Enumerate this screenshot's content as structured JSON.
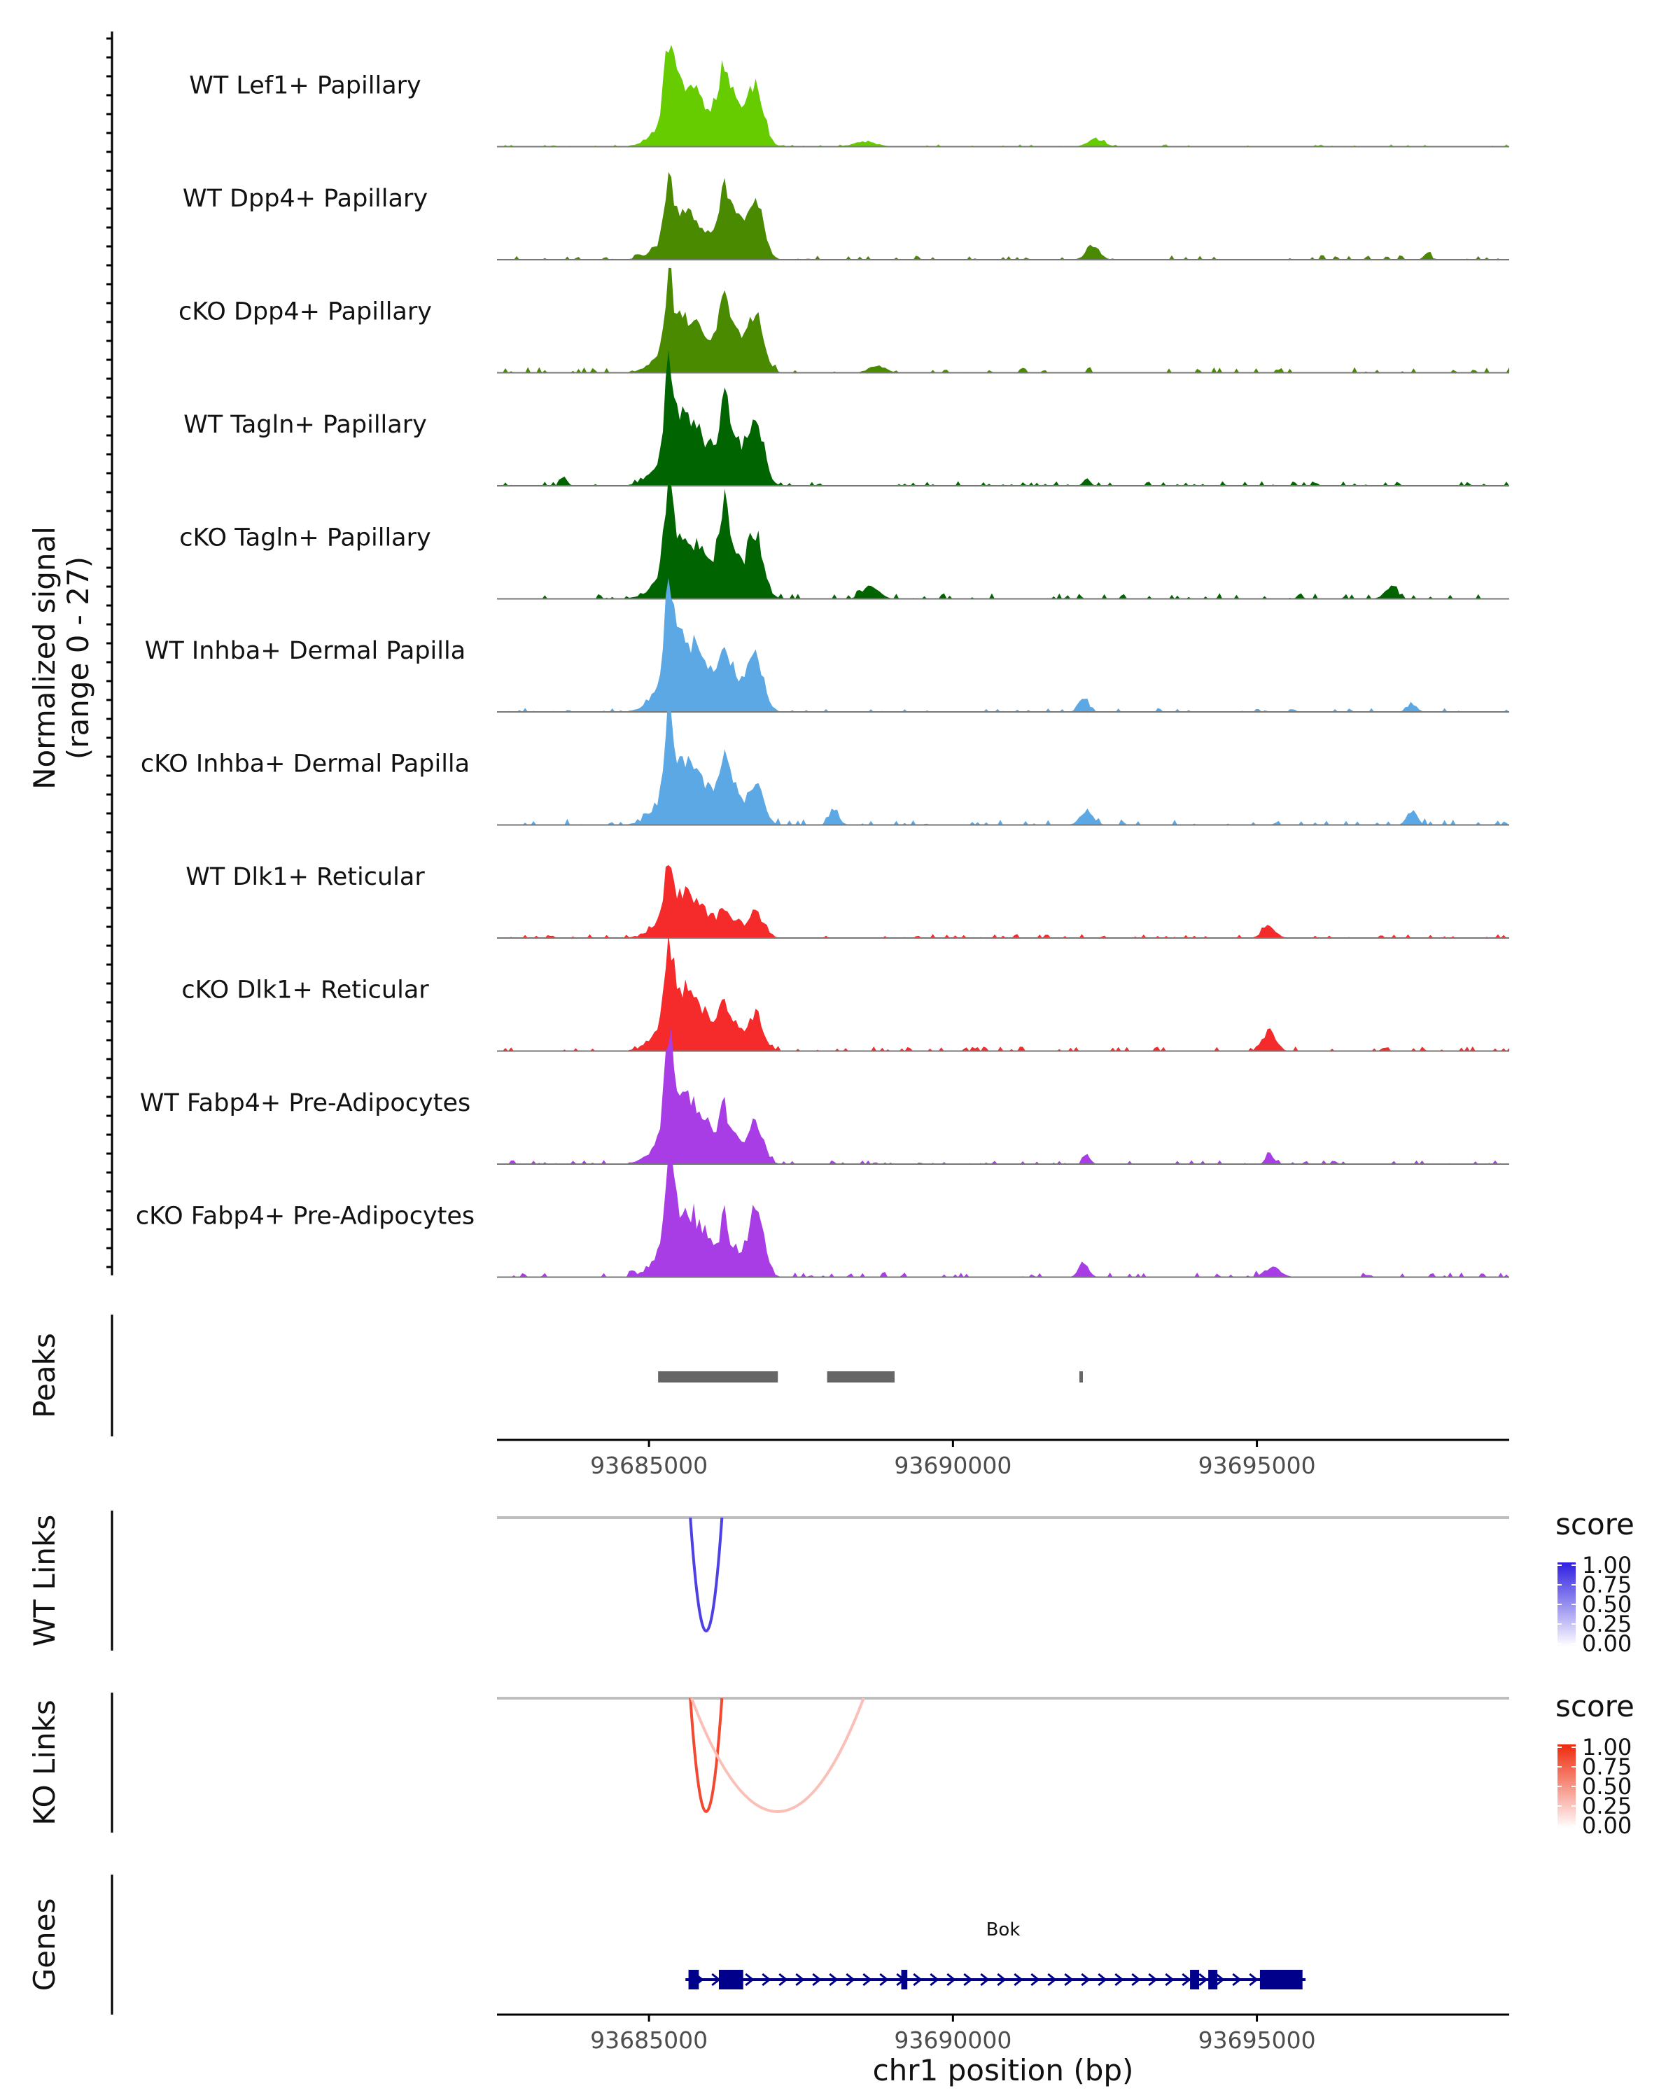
{
  "chart_data": {
    "type": "genome-coverage",
    "region": {
      "chrom": "chr1",
      "start": 93682500,
      "end": 93699150
    },
    "x_ticks": [
      93685000,
      93690000,
      93695000
    ],
    "x_tick_labels": [
      "93685000",
      "93690000",
      "93695000"
    ],
    "xlabel": "chr1 position (bp)",
    "coverage": {
      "ylabel_line1": "Normalized signal",
      "ylabel_line2": "(range 0 - 27)",
      "y_range": [
        0,
        27
      ],
      "peak_positions": {
        "dp1": 93685500,
        "dp2": 93685900,
        "main": 93686700,
        "distal": 93695100
      },
      "tracks": [
        {
          "label": "WT Lef1+ Papillary",
          "color": "#66CC00",
          "peaks": [
            [
              93685000,
              93686200,
              13
            ],
            [
              93685200,
              93685450,
              14
            ],
            [
              93686000,
              93686600,
              13
            ],
            [
              93686500,
              93687000,
              13
            ],
            [
              93686150,
              93686300,
              4
            ],
            [
              93692100,
              93692600,
              1.5
            ],
            [
              93688200,
              93688900,
              1
            ]
          ],
          "noise": 0.4,
          "seed": 11
        },
        {
          "label": "WT Dpp4+ Papillary",
          "color": "#4A8A00",
          "peaks": [
            [
              93685000,
              93686200,
              9
            ],
            [
              93685200,
              93685450,
              10
            ],
            [
              93686000,
              93686600,
              12
            ],
            [
              93686500,
              93687000,
              13
            ],
            [
              93686150,
              93686300,
              4
            ],
            [
              93692100,
              93692500,
              3
            ],
            [
              93697700,
              93697900,
              1.5
            ]
          ],
          "noise": 0.8,
          "seed": 21
        },
        {
          "label": "cKO Dpp4+ Papillary",
          "color": "#4A8A00",
          "peaks": [
            [
              93685000,
              93686200,
              11
            ],
            [
              93685200,
              93685450,
              12
            ],
            [
              93686000,
              93686600,
              13
            ],
            [
              93686500,
              93687000,
              11
            ],
            [
              93686150,
              93686300,
              5
            ],
            [
              93688500,
              93689000,
              1.5
            ]
          ],
          "noise": 1.0,
          "seed": 31
        },
        {
          "label": "WT Tagln+ Papillary",
          "color": "#006400",
          "peaks": [
            [
              93685000,
              93686200,
              14
            ],
            [
              93685200,
              93685450,
              15
            ],
            [
              93686000,
              93686600,
              13
            ],
            [
              93686500,
              93687000,
              14
            ],
            [
              93686150,
              93686300,
              5
            ],
            [
              93683500,
              93683700,
              2
            ],
            [
              93692100,
              93692300,
              1.5
            ]
          ],
          "noise": 0.8,
          "seed": 41
        },
        {
          "label": "cKO Tagln+ Papillary",
          "color": "#006400",
          "peaks": [
            [
              93685000,
              93686200,
              13
            ],
            [
              93685200,
              93685450,
              16
            ],
            [
              93686000,
              93686600,
              14
            ],
            [
              93686500,
              93687000,
              13
            ],
            [
              93686150,
              93686300,
              6
            ],
            [
              93688400,
              93688900,
              2.5
            ],
            [
              93697000,
              93697400,
              2
            ]
          ],
          "noise": 1.0,
          "seed": 51
        },
        {
          "label": "WT Inhba+ Dermal Papilla",
          "color": "#5BA8E5",
          "peaks": [
            [
              93685000,
              93686200,
              15
            ],
            [
              93685200,
              93685450,
              16
            ],
            [
              93686000,
              93686600,
              10
            ],
            [
              93686500,
              93687000,
              11
            ],
            [
              93686150,
              93686300,
              4
            ],
            [
              93692000,
              93692300,
              2.5
            ],
            [
              93697400,
              93697700,
              1.5
            ]
          ],
          "noise": 0.7,
          "seed": 61
        },
        {
          "label": "cKO Inhba+ Dermal Papilla",
          "color": "#5BA8E5",
          "peaks": [
            [
              93685000,
              93686200,
              13
            ],
            [
              93685200,
              93685450,
              18
            ],
            [
              93686000,
              93686600,
              9
            ],
            [
              93686500,
              93687000,
              8
            ],
            [
              93686150,
              93686300,
              5
            ],
            [
              93687900,
              93688200,
              3
            ],
            [
              93692000,
              93692400,
              3
            ],
            [
              93697400,
              93697700,
              3
            ]
          ],
          "noise": 1.1,
          "seed": 71
        },
        {
          "label": "WT Dlk1+ Reticular",
          "color": "#F52A2A",
          "peaks": [
            [
              93685000,
              93686200,
              9
            ],
            [
              93685200,
              93685450,
              10
            ],
            [
              93686000,
              93686600,
              4
            ],
            [
              93686500,
              93687000,
              5
            ],
            [
              93686150,
              93686300,
              2
            ],
            [
              93695000,
              93695400,
              2.5
            ]
          ],
          "noise": 0.7,
          "seed": 81
        },
        {
          "label": "cKO Dlk1+ Reticular",
          "color": "#F52A2A",
          "peaks": [
            [
              93685000,
              93686200,
              13
            ],
            [
              93685200,
              93685450,
              14
            ],
            [
              93686000,
              93686600,
              7
            ],
            [
              93686500,
              93687000,
              7
            ],
            [
              93686150,
              93686300,
              3
            ],
            [
              93695000,
              93695400,
              4
            ]
          ],
          "noise": 0.8,
          "seed": 91
        },
        {
          "label": "WT Fabp4+ Pre-Adipocytes",
          "color": "#A83DE6",
          "peaks": [
            [
              93685000,
              93686200,
              14
            ],
            [
              93685200,
              93685450,
              16
            ],
            [
              93686000,
              93686600,
              7
            ],
            [
              93686500,
              93687000,
              8
            ],
            [
              93686150,
              93686300,
              4
            ],
            [
              93692100,
              93692300,
              2
            ],
            [
              93695100,
              93695300,
              2.5
            ]
          ],
          "noise": 0.7,
          "seed": 101
        },
        {
          "label": "cKO Fabp4+ Pre-Adipocytes",
          "color": "#A83DE6",
          "peaks": [
            [
              93685000,
              93686200,
              14
            ],
            [
              93685200,
              93685450,
              17
            ],
            [
              93686000,
              93686600,
              7
            ],
            [
              93686500,
              93687000,
              13
            ],
            [
              93686150,
              93686300,
              4
            ],
            [
              93692000,
              93692300,
              3
            ],
            [
              93695000,
              93695500,
              2
            ]
          ],
          "noise": 0.9,
          "seed": 111
        }
      ]
    },
    "peaks_track": {
      "label": "Peaks",
      "color": "#666666",
      "regions": [
        [
          93685150,
          93687120
        ],
        [
          93687930,
          93689040
        ],
        [
          93692080,
          93692130
        ]
      ]
    },
    "links": [
      {
        "label": "WT Links",
        "legend_title": "score",
        "legend_ticks": [
          "1.00",
          "0.75",
          "0.50",
          "0.25",
          "0.00"
        ],
        "color_high": "#2E1FE0",
        "color_low": "#FFFFFF",
        "arcs": [
          {
            "start": 93685680,
            "end": 93686200,
            "score": 0.85,
            "depth": 0.9
          }
        ]
      },
      {
        "label": "KO Links",
        "legend_title": "score",
        "legend_ticks": [
          "1.00",
          "0.75",
          "0.50",
          "0.25",
          "0.00"
        ],
        "color_high": "#EE2A0D",
        "color_low": "#FFFFFF",
        "arcs": [
          {
            "start": 93685680,
            "end": 93686200,
            "score": 0.85,
            "depth": 0.9
          },
          {
            "start": 93685700,
            "end": 93688530,
            "score": 0.3,
            "depth": 0.9
          }
        ]
      }
    ],
    "genes": {
      "label": "Genes",
      "color": "#00008B",
      "gene_name": "Bok",
      "gene_start": 93685600,
      "gene_end": 93695800,
      "exons": [
        [
          93685650,
          93685820
        ],
        [
          93686150,
          93686550
        ],
        [
          93689150,
          93689250
        ],
        [
          93693900,
          93694050
        ],
        [
          93694200,
          93694350
        ],
        [
          93695050,
          93695750
        ]
      ]
    }
  }
}
